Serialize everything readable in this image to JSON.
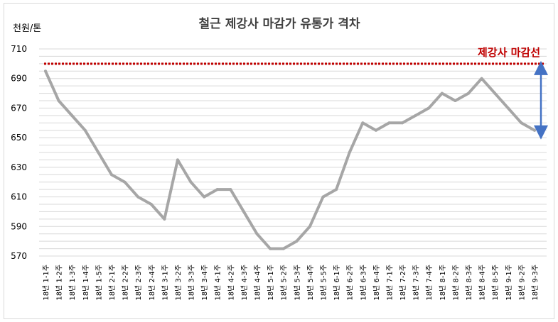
{
  "chart_data": {
    "type": "line",
    "title": "철근 제강사 마감가 유통가 격차",
    "unit_label": "천원/톤",
    "ylim": [
      570,
      710
    ],
    "yticks": [
      570,
      590,
      610,
      630,
      650,
      670,
      690,
      710
    ],
    "grid": true,
    "categories": [
      "18년 1-1주",
      "18년 1-2주",
      "18년 1-3주",
      "18년 1-4주",
      "18년 1-5주",
      "18년 2-1주",
      "18년 2-2주",
      "18년 2-3주",
      "18년 2-4주",
      "18년 3-1주",
      "18년 3-2주",
      "18년 3-3주",
      "18년 3-4주",
      "18년 4-1주",
      "18년 4-2주",
      "18년 4-3주",
      "18년 4-4주",
      "18년 5-1주",
      "18년 5-2주",
      "18년 5-3주",
      "18년 5-4주",
      "18년 5-5주",
      "18년 6-1주",
      "18년 6-2주",
      "18년 6-3주",
      "18년 6-4주",
      "18년 7-1주",
      "18년 7-2주",
      "18년 7-3주",
      "18년 7-4주",
      "18년 8-1주",
      "18년 8-2주",
      "18년 8-3주",
      "18년 8-4주",
      "18년 8-5주",
      "18년 9-1주",
      "18년 9-2주",
      "18년 9-3주"
    ],
    "series": [
      {
        "name": "",
        "color": "#a6a6a6",
        "values": [
          695,
          675,
          665,
          655,
          640,
          625,
          620,
          610,
          605,
          595,
          635,
          620,
          610,
          615,
          615,
          600,
          585,
          575,
          575,
          580,
          590,
          610,
          615,
          640,
          660,
          655,
          660,
          660,
          665,
          670,
          680,
          675,
          680,
          690,
          680,
          670,
          660,
          655
        ]
      }
    ],
    "reference_line": {
      "label": "제강사 마감선",
      "value": 700,
      "color": "#c00000"
    },
    "gap_arrow": {
      "from": 700,
      "to": 655,
      "color": "#4472c4"
    }
  }
}
